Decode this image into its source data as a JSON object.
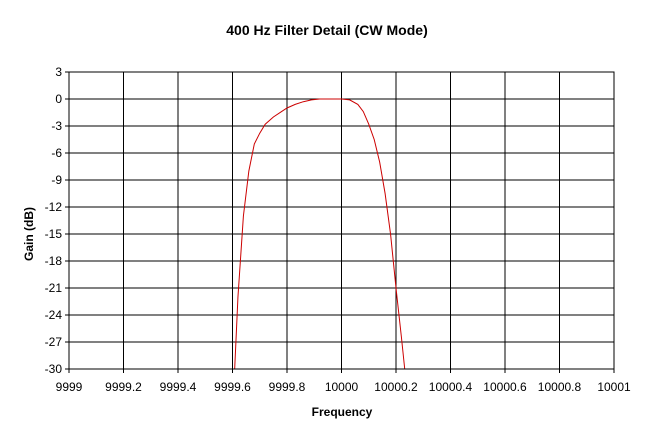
{
  "chart_data": {
    "type": "line",
    "title": "400 Hz Filter Detail (CW Mode)",
    "xlabel": "Frequency",
    "ylabel": "Gain (dB)",
    "xlim": [
      9999,
      10001
    ],
    "ylim": [
      -30,
      3
    ],
    "xticks": [
      9999,
      9999.2,
      9999.4,
      9999.6,
      9999.8,
      10000,
      10000.2,
      10000.4,
      10000.6,
      10000.8,
      10001
    ],
    "xtick_labels": [
      "9999",
      "9999.2",
      "9999.4",
      "9999.6",
      "9999.8",
      "10000",
      "10000.2",
      "10000.4",
      "10000.6",
      "10000.8",
      "10001"
    ],
    "yticks": [
      3,
      0,
      -3,
      -6,
      -9,
      -12,
      -15,
      -18,
      -21,
      -24,
      -27,
      -30
    ],
    "ytick_labels": [
      "3",
      "0",
      "-3",
      "-6",
      "-9",
      "-12",
      "-15",
      "-18",
      "-21",
      "-24",
      "-27",
      "-30"
    ],
    "grid": true,
    "line_color": "#cc0000",
    "series": [
      {
        "x": [
          9999.608,
          9999.62,
          9999.64,
          9999.66,
          9999.68,
          9999.7,
          9999.72,
          9999.75,
          9999.78,
          9999.8,
          9999.83,
          9999.86,
          9999.89,
          9999.92,
          9999.95,
          9999.98,
          10000.0,
          10000.03,
          10000.06,
          10000.08,
          10000.1,
          10000.12,
          10000.14,
          10000.16,
          10000.18,
          10000.2,
          10000.22,
          10000.232
        ],
        "y": [
          -30,
          -22,
          -13,
          -8,
          -5,
          -3.8,
          -2.8,
          -2.0,
          -1.4,
          -1.0,
          -0.6,
          -0.3,
          -0.1,
          0,
          0,
          0,
          0,
          -0.1,
          -0.6,
          -1.4,
          -2.8,
          -4.5,
          -7,
          -10.5,
          -15,
          -21,
          -26.5,
          -30
        ]
      }
    ]
  }
}
